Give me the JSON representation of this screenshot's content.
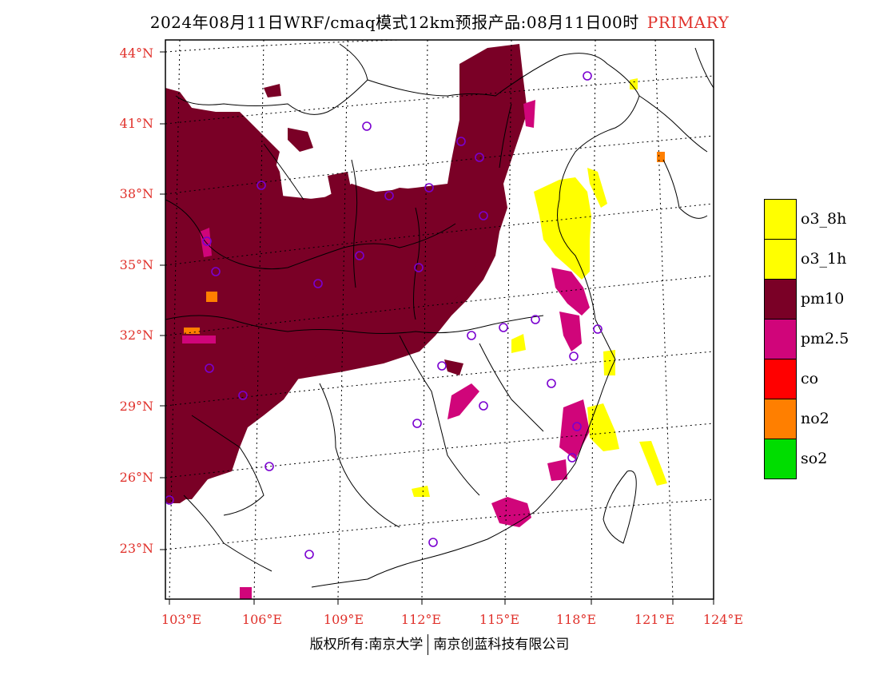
{
  "title": {
    "main": "2024年08月11日WRF/cmaq模式12km预报产品:08月11日00时",
    "tag": "PRIMARY",
    "tag_color": "#e0302a"
  },
  "axes": {
    "lat_labels": [
      "44°N",
      "41°N",
      "38°N",
      "35°N",
      "32°N",
      "29°N",
      "26°N",
      "23°N"
    ],
    "lon_labels": [
      "103°E",
      "106°E",
      "109°E",
      "112°E",
      "115°E",
      "118°E",
      "121°E",
      "124°E"
    ],
    "label_color": "#e0302a"
  },
  "legend": {
    "items": [
      {
        "label": "o3_8h",
        "color": "#ffff00"
      },
      {
        "label": "o3_1h",
        "color": "#ffff00"
      },
      {
        "label": "pm10",
        "color": "#7a0026"
      },
      {
        "label": "pm2.5",
        "color": "#d0057a"
      },
      {
        "label": "co",
        "color": "#ff0000"
      },
      {
        "label": "no2",
        "color": "#ff7f00"
      },
      {
        "label": "so2",
        "color": "#00dd00"
      }
    ]
  },
  "footer": {
    "left": "版权所有:南京大学",
    "right": "南京创蓝科技有限公司"
  },
  "stations": {
    "marker_color": "#7a00d0",
    "count": 30
  }
}
